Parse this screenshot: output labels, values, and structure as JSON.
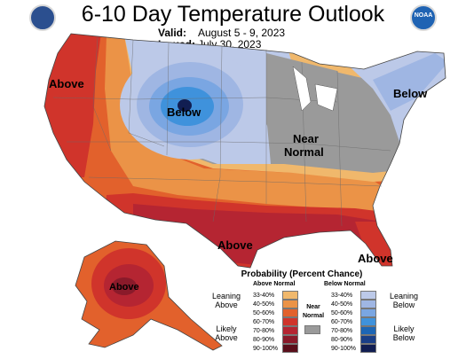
{
  "title": "6-10 Day Temperature Outlook",
  "valid_label": "Valid:",
  "valid_value": "August 5 - 9, 2023",
  "issued_label": "Issued:",
  "issued_value": "July 30, 2023",
  "map_labels": {
    "above_west": "Above",
    "below_north": "Below",
    "below_northeast": "Below",
    "near_normal_line1": "Near",
    "near_normal_line2": "Normal",
    "above_south": "Above",
    "above_florida": "Above",
    "above_alaska": "Above"
  },
  "legend": {
    "title": "Probability (Percent Chance)",
    "above_head": "Above Normal",
    "below_head": "Below Normal",
    "near_line1": "Near",
    "near_line2": "Normal",
    "leaning_above_1": "Leaning",
    "leaning_above_2": "Above",
    "likely_above_1": "Likely",
    "likely_above_2": "Above",
    "leaning_below_1": "Leaning",
    "leaning_below_2": "Below",
    "likely_below_1": "Likely",
    "likely_below_2": "Below",
    "above_bins": [
      {
        "range": "33-40%",
        "color": "#f0b86c"
      },
      {
        "range": "40-50%",
        "color": "#eb9347"
      },
      {
        "range": "50-60%",
        "color": "#e2612c"
      },
      {
        "range": "60-70%",
        "color": "#d0342b"
      },
      {
        "range": "70-80%",
        "color": "#b52532"
      },
      {
        "range": "80-90%",
        "color": "#8a1a2a"
      },
      {
        "range": "90-100%",
        "color": "#5a0f1b"
      }
    ],
    "below_bins": [
      {
        "range": "33-40%",
        "color": "#bcc9e8"
      },
      {
        "range": "40-50%",
        "color": "#9fb6e3"
      },
      {
        "range": "50-60%",
        "color": "#7aa6e2"
      },
      {
        "range": "60-70%",
        "color": "#3f92dc"
      },
      {
        "range": "70-80%",
        "color": "#1d66b5"
      },
      {
        "range": "80-90%",
        "color": "#1a3f87"
      },
      {
        "range": "90-100%",
        "color": "#111e52"
      }
    ],
    "near_color": "#9a9a9a"
  }
}
